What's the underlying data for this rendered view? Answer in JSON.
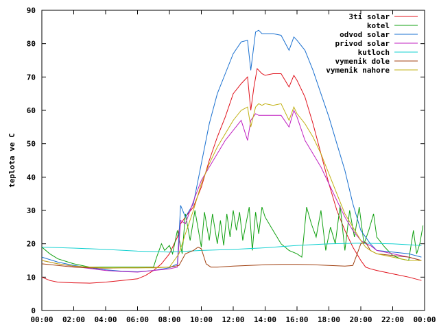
{
  "chart_data": {
    "type": "line",
    "title": "",
    "xlabel": "",
    "ylabel": "teplota ve C",
    "xlim": [
      0,
      24
    ],
    "ylim": [
      0,
      90
    ],
    "x_ticks": [
      {
        "v": 0,
        "label": "00:00"
      },
      {
        "v": 2,
        "label": "02:00"
      },
      {
        "v": 4,
        "label": "04:00"
      },
      {
        "v": 6,
        "label": "06:00"
      },
      {
        "v": 8,
        "label": "08:00"
      },
      {
        "v": 10,
        "label": "10:00"
      },
      {
        "v": 12,
        "label": "12:00"
      },
      {
        "v": 14,
        "label": "14:00"
      },
      {
        "v": 16,
        "label": "16:00"
      },
      {
        "v": 18,
        "label": "18:00"
      },
      {
        "v": 20,
        "label": "20:00"
      },
      {
        "v": 22,
        "label": "22:00"
      },
      {
        "v": 24,
        "label": "00:00"
      }
    ],
    "y_ticks": [
      {
        "v": 0,
        "label": "0"
      },
      {
        "v": 10,
        "label": "10"
      },
      {
        "v": 20,
        "label": "20"
      },
      {
        "v": 30,
        "label": "30"
      },
      {
        "v": 40,
        "label": "40"
      },
      {
        "v": 50,
        "label": "50"
      },
      {
        "v": 60,
        "label": "60"
      },
      {
        "v": 70,
        "label": "70"
      },
      {
        "v": 80,
        "label": "80"
      },
      {
        "v": 90,
        "label": "90"
      }
    ],
    "grid": false,
    "legend_position": "top-right",
    "series": [
      {
        "name": "3ti solar",
        "color": "#e0101a",
        "x": [
          0,
          0.5,
          1,
          2,
          3,
          4,
          5,
          6,
          6.5,
          7,
          7.5,
          8,
          8.5,
          8.7,
          9,
          9.5,
          10,
          10.5,
          11,
          11.5,
          12,
          12.5,
          12.9,
          13.1,
          13.3,
          13.5,
          13.8,
          14,
          14.5,
          15,
          15.5,
          15.8,
          16,
          16.5,
          17,
          17.5,
          18,
          18.5,
          19,
          19.5,
          20,
          20.3,
          20.6,
          21,
          22,
          23,
          23.8
        ],
        "y": [
          10,
          9,
          8.5,
          8.3,
          8.2,
          8.5,
          9,
          9.5,
          10.5,
          12,
          14,
          17,
          22,
          26,
          28,
          31,
          37,
          45,
          52,
          58,
          65,
          68,
          70,
          60,
          67,
          72.5,
          71,
          70.5,
          71,
          71,
          67,
          70.5,
          69,
          64,
          56,
          47,
          38,
          30,
          24,
          19,
          15,
          13,
          12.5,
          12,
          11,
          10,
          9
        ]
      },
      {
        "name": "kotel",
        "color": "#10a010",
        "x": [
          0,
          0.5,
          1,
          2,
          3,
          4,
          5,
          6,
          7,
          7.2,
          7.5,
          7.7,
          8,
          8.2,
          8.5,
          8.8,
          9,
          9.3,
          9.6,
          10,
          10.2,
          10.5,
          10.7,
          11,
          11.2,
          11.4,
          11.6,
          11.8,
          12,
          12.2,
          12.4,
          12.6,
          12.8,
          13,
          13.2,
          13.4,
          13.6,
          13.8,
          14,
          14.5,
          15,
          15.5,
          16,
          16.3,
          16.6,
          16.9,
          17.2,
          17.5,
          17.8,
          18.1,
          18.4,
          18.7,
          19,
          19.3,
          19.6,
          19.9,
          20.2,
          20.5,
          20.8,
          21,
          21.5,
          22,
          22.5,
          23,
          23.3,
          23.5,
          23.7,
          23.9
        ],
        "y": [
          19,
          17,
          15.5,
          14,
          13,
          13,
          13,
          13,
          13,
          16,
          20,
          18,
          19.5,
          17,
          24,
          17,
          29,
          21,
          30,
          19,
          29.5,
          21,
          29,
          20,
          27,
          19.5,
          29,
          22,
          30,
          24,
          29.5,
          21,
          26,
          31,
          18,
          29.5,
          23,
          31,
          28,
          24,
          20,
          18,
          17,
          16,
          31,
          26,
          22,
          30,
          18,
          25,
          20,
          31.5,
          18,
          30,
          22,
          31,
          20,
          24,
          29,
          22,
          19,
          16.5,
          15.5,
          15,
          24,
          17,
          20,
          25.5
        ]
      },
      {
        "name": "odvod solar",
        "color": "#1a70d0",
        "x": [
          0,
          1,
          2,
          3,
          4,
          5,
          6,
          7,
          8,
          8.5,
          8.7,
          9,
          9.5,
          10,
          10.5,
          11,
          11.5,
          12,
          12.5,
          12.9,
          13.1,
          13.4,
          13.6,
          13.8,
          14,
          14.5,
          15,
          15.5,
          15.8,
          16,
          16.5,
          17,
          17.5,
          18,
          18.5,
          19,
          19.5,
          20,
          20.3,
          20.6,
          21,
          22,
          23,
          23.8
        ],
        "y": [
          16,
          14.5,
          13.5,
          12.8,
          12.2,
          11.8,
          11.6,
          12,
          12.8,
          14,
          31.5,
          28,
          32,
          44,
          56,
          65,
          71,
          77,
          80.5,
          81,
          72,
          83.5,
          84,
          83,
          83,
          83,
          82.5,
          78,
          82,
          81,
          78,
          72,
          65,
          58,
          50,
          42,
          32,
          24,
          22,
          20,
          18,
          17.5,
          17,
          16
        ]
      },
      {
        "name": "privod solar",
        "color": "#c020c0",
        "x": [
          0,
          1,
          2,
          3,
          4,
          5,
          6,
          7,
          8,
          8.5,
          8.7,
          9,
          9.3,
          9.6,
          10,
          10.5,
          11,
          11.5,
          12,
          12.5,
          12.9,
          13.1,
          13.4,
          13.6,
          13.8,
          14,
          14.5,
          15,
          15.5,
          15.8,
          16,
          16.5,
          17,
          17.5,
          18,
          18.5,
          19,
          19.5,
          20,
          20.3,
          20.6,
          21,
          22,
          23,
          23.8
        ],
        "y": [
          15,
          14,
          13.2,
          12.6,
          12,
          11.7,
          11.5,
          12,
          12.5,
          13,
          27,
          26,
          30,
          34,
          39,
          43,
          47,
          51,
          54,
          57,
          51,
          57,
          59,
          58.5,
          58.5,
          58.5,
          58.5,
          58.5,
          55,
          60,
          58,
          51,
          47,
          43,
          38,
          33,
          28,
          24,
          21,
          20,
          19.5,
          18,
          17,
          16,
          15
        ]
      },
      {
        "name": "kutloch",
        "color": "#10d0d0",
        "x": [
          0,
          2,
          4,
          6,
          8,
          10,
          12,
          14,
          16,
          18,
          20,
          22,
          23.8
        ],
        "y": [
          19,
          18.7,
          18.3,
          17.8,
          17.5,
          18,
          18.3,
          18.8,
          19.5,
          20,
          20.2,
          20,
          19.5
        ]
      },
      {
        "name": "vymenik dole",
        "color": "#a04010",
        "x": [
          0,
          1,
          2,
          3,
          4,
          5,
          6,
          7,
          8,
          8.6,
          9,
          9.5,
          9.8,
          10,
          10.3,
          10.6,
          11,
          12,
          13,
          14,
          15,
          16,
          17,
          18,
          19,
          19.5,
          19.7,
          20,
          20.3,
          20.6,
          21,
          22,
          23,
          23.8
        ],
        "y": [
          14,
          13.5,
          13,
          12.8,
          12.7,
          12.8,
          12.8,
          12.9,
          13,
          13.5,
          17,
          18,
          19,
          18.5,
          14,
          13,
          13,
          13.3,
          13.5,
          13.7,
          13.8,
          13.8,
          13.7,
          13.5,
          13.3,
          13.5,
          16,
          20,
          20.5,
          18,
          17,
          16.5,
          16,
          15
        ]
      },
      {
        "name": "vymenik nahore",
        "color": "#c0b010",
        "x": [
          0,
          1,
          2,
          3,
          4,
          5,
          6,
          7,
          8,
          8.6,
          9,
          9.5,
          10,
          10.5,
          11,
          11.5,
          12,
          12.5,
          12.9,
          13.1,
          13.4,
          13.6,
          13.8,
          14,
          14.5,
          15,
          15.5,
          15.8,
          16,
          16.5,
          17,
          17.5,
          18,
          18.5,
          19,
          19.5,
          20,
          20.3,
          20.6,
          21,
          22,
          23,
          23.8
        ],
        "y": [
          15,
          14,
          13.3,
          13,
          12.8,
          12.8,
          12.8,
          12.8,
          13,
          17,
          23,
          30,
          38,
          44,
          49,
          53,
          57,
          60,
          61,
          55,
          61,
          62,
          61.5,
          62,
          61.5,
          62,
          57,
          61,
          59,
          56,
          52,
          47,
          41,
          35,
          29,
          25,
          21,
          19,
          18,
          17,
          16,
          15,
          15
        ]
      }
    ]
  }
}
